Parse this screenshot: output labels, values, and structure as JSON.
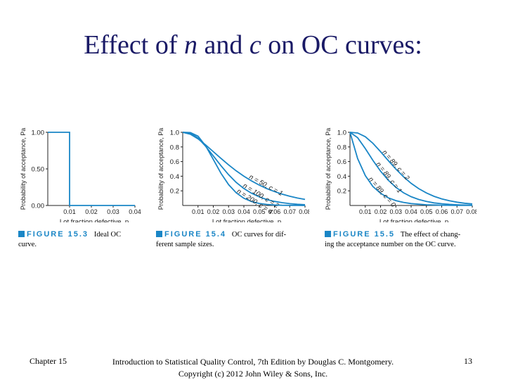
{
  "slide": {
    "title_pre": "Effect of ",
    "title_n": "n",
    "title_mid": " and ",
    "title_c": "c",
    "title_post": " on OC curves:",
    "footer_left": "Chapter 15",
    "footer_center_line1": "Introduction to Statistical Quality Control, 7th Edition by Douglas C. Montgomery.",
    "footer_center_line2": "Copyright (c) 2012  John Wiley & Sons, Inc.",
    "page_number": "13",
    "accent_color": "#1a86c6"
  },
  "chart_data": [
    {
      "type": "line",
      "figure_label": "FIGURE 15.3",
      "caption_line1": "Ideal OC",
      "caption_line2": "curve.",
      "xlabel": "Lot fraction defective, p",
      "ylabel": "Probability of acceptance, Pa",
      "x_ticks": [
        "0.01",
        "0.02",
        "0.03",
        "0.04"
      ],
      "y_ticks": [
        "1.00",
        "0.50",
        "0.00"
      ],
      "xlim": [
        0,
        0.04
      ],
      "ylim": [
        0,
        1
      ],
      "series": [
        {
          "x": [
            0,
            0.01,
            0.01,
            0.04
          ],
          "y": [
            1,
            1,
            0,
            0
          ]
        }
      ]
    },
    {
      "type": "line",
      "figure_label": "FIGURE 15.4",
      "caption_line1": "OC curves for dif-",
      "caption_line2": "ferent sample sizes.",
      "xlabel": "Lot fraction defective, p",
      "ylabel": "Probability of acceptance, Pa",
      "x_ticks": [
        "0.01",
        "0.02",
        "0.03",
        "0.04",
        "0.05",
        "0.06",
        "0.07",
        "0.08"
      ],
      "y_ticks": [
        "1.0",
        "0.8",
        "0.6",
        "0.4",
        "0.2"
      ],
      "xlim": [
        0,
        0.08
      ],
      "ylim": [
        0,
        1
      ],
      "series": [
        {
          "name": "n = 50, c = 1",
          "x": [
            0,
            0.005,
            0.01,
            0.015,
            0.02,
            0.025,
            0.03,
            0.035,
            0.04,
            0.045,
            0.05,
            0.055,
            0.06,
            0.065,
            0.07,
            0.075,
            0.08
          ],
          "y": [
            1,
            0.974,
            0.911,
            0.828,
            0.736,
            0.643,
            0.555,
            0.473,
            0.4,
            0.336,
            0.279,
            0.231,
            0.19,
            0.155,
            0.126,
            0.102,
            0.083
          ]
        },
        {
          "name": "n = 100, c = 2",
          "x": [
            0,
            0.005,
            0.01,
            0.015,
            0.02,
            0.025,
            0.03,
            0.035,
            0.04,
            0.045,
            0.05,
            0.055,
            0.06,
            0.065,
            0.07,
            0.075,
            0.08
          ],
          "y": [
            1,
            0.986,
            0.921,
            0.809,
            0.677,
            0.544,
            0.42,
            0.315,
            0.232,
            0.167,
            0.118,
            0.081,
            0.056,
            0.038,
            0.025,
            0.016,
            0.011
          ]
        },
        {
          "name": "n = 200, c = 4",
          "x": [
            0,
            0.005,
            0.01,
            0.015,
            0.02,
            0.025,
            0.03,
            0.035,
            0.04,
            0.045,
            0.05,
            0.055,
            0.06,
            0.065,
            0.07,
            0.075,
            0.08
          ],
          "y": [
            1,
            0.996,
            0.947,
            0.815,
            0.629,
            0.44,
            0.285,
            0.173,
            0.099,
            0.054,
            0.028,
            0.014,
            0.007,
            0.003,
            0.002,
            0.001,
            0.0
          ]
        }
      ]
    },
    {
      "type": "line",
      "figure_label": "FIGURE 15.5",
      "caption_line1": "The effect of chang-",
      "caption_line2": "ing the acceptance number on the OC curve.",
      "xlabel": "Lot fraction defective, p",
      "ylabel": "Probability of acceptance, Pa",
      "x_ticks": [
        "0.01",
        "0.02",
        "0.03",
        "0.04",
        "0.05",
        "0.06",
        "0.07",
        "0.08"
      ],
      "y_ticks": [
        "1.0",
        "0.8",
        "0.6",
        "0.4",
        "0.2"
      ],
      "xlim": [
        0,
        0.08
      ],
      "ylim": [
        0,
        1
      ],
      "series": [
        {
          "name": "n = 89, c = 2",
          "x": [
            0,
            0.005,
            0.01,
            0.015,
            0.02,
            0.025,
            0.03,
            0.035,
            0.04,
            0.045,
            0.05,
            0.055,
            0.06,
            0.065,
            0.07,
            0.075,
            0.08
          ],
          "y": [
            1,
            0.99,
            0.939,
            0.85,
            0.736,
            0.614,
            0.497,
            0.393,
            0.303,
            0.23,
            0.171,
            0.125,
            0.09,
            0.064,
            0.045,
            0.031,
            0.021
          ]
        },
        {
          "name": "n = 89, c = 1",
          "x": [
            0,
            0.005,
            0.01,
            0.015,
            0.02,
            0.025,
            0.03,
            0.035,
            0.04,
            0.045,
            0.05,
            0.055,
            0.06,
            0.065,
            0.07,
            0.075,
            0.08
          ],
          "y": [
            1,
            0.926,
            0.778,
            0.616,
            0.469,
            0.346,
            0.248,
            0.174,
            0.12,
            0.082,
            0.055,
            0.036,
            0.024,
            0.015,
            0.01,
            0.006,
            0.004
          ]
        },
        {
          "name": "n = 89, c = 0",
          "x": [
            0,
            0.005,
            0.01,
            0.015,
            0.02,
            0.025,
            0.03,
            0.035,
            0.04,
            0.045,
            0.05,
            0.055,
            0.06,
            0.065,
            0.07,
            0.075,
            0.08
          ],
          "y": [
            1,
            0.64,
            0.409,
            0.26,
            0.166,
            0.105,
            0.066,
            0.042,
            0.026,
            0.017,
            0.01,
            0.007,
            0.004,
            0.003,
            0.002,
            0.001,
            0.001
          ]
        }
      ]
    }
  ]
}
